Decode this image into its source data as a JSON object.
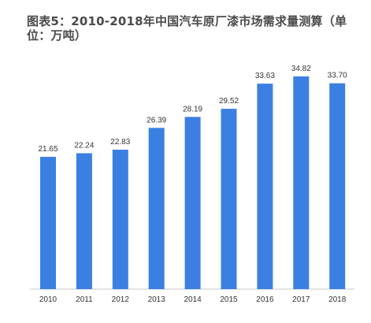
{
  "title": "图表5：2010-2018年中国汽车原厂漆市场需求量测算（单位：万吨）",
  "chart_data": {
    "type": "bar",
    "title": "图表5：2010-2018年中国汽车原厂漆市场需求量测算（单位：万吨）",
    "xlabel": "",
    "ylabel": "",
    "categories": [
      "2010",
      "2011",
      "2012",
      "2013",
      "2014",
      "2015",
      "2016",
      "2017",
      "2018"
    ],
    "values": [
      21.65,
      22.24,
      22.83,
      26.39,
      28.19,
      29.52,
      33.63,
      34.82,
      33.7
    ],
    "value_labels": [
      "21.65",
      "22.24",
      "22.83",
      "26.39",
      "28.19",
      "29.52",
      "33.63",
      "34.82",
      "33.70"
    ],
    "ylim": [
      0,
      36
    ],
    "grid": false,
    "legend": "none",
    "bar_color": "#3b7fe2"
  }
}
